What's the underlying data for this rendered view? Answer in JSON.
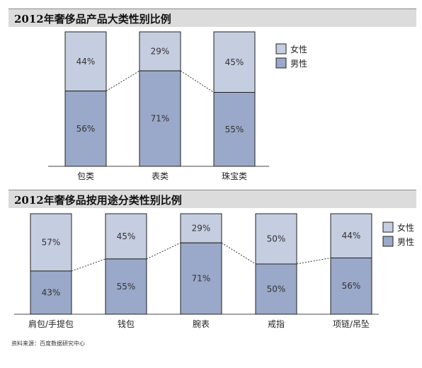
{
  "source": "资料来源：百度数据研究中心",
  "colors": {
    "female": "#c5cde0",
    "male": "#9aa8c9",
    "border": "#222222",
    "connector": "#333333"
  },
  "chart_data": [
    {
      "type": "bar",
      "stacked": true,
      "title": "2012年奢侈品产品大类性别比例",
      "categories": [
        "包类",
        "表类",
        "珠宝类"
      ],
      "series": [
        {
          "name": "男性",
          "values": [
            56,
            71,
            55
          ],
          "labels": [
            "56%",
            "71%",
            "55%"
          ]
        },
        {
          "name": "女性",
          "values": [
            44,
            29,
            45
          ],
          "labels": [
            "44%",
            "29%",
            "45%"
          ]
        }
      ],
      "legend": [
        {
          "label": "女性"
        },
        {
          "label": "男性"
        }
      ],
      "ylim": [
        0,
        100
      ]
    },
    {
      "type": "bar",
      "stacked": true,
      "title": "2012年奢侈品按用途分类性别比例",
      "categories": [
        "肩包/手提包",
        "钱包",
        "腕表",
        "戒指",
        "项链/吊坠"
      ],
      "series": [
        {
          "name": "男性",
          "values": [
            43,
            55,
            71,
            50,
            56
          ],
          "labels": [
            "43%",
            "55%",
            "71%",
            "50%",
            "56%"
          ]
        },
        {
          "name": "女性",
          "values": [
            57,
            45,
            29,
            50,
            44
          ],
          "labels": [
            "57%",
            "45%",
            "29%",
            "50%",
            "44%"
          ]
        }
      ],
      "legend": [
        {
          "label": "女性"
        },
        {
          "label": "男性"
        }
      ],
      "ylim": [
        0,
        100
      ]
    }
  ]
}
